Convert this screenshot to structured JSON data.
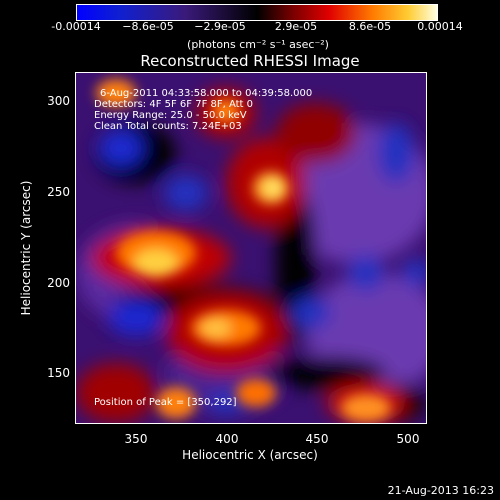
{
  "colorbar": {
    "ticks": [
      "-0.00014",
      "−8.6e-05",
      "−2.9e-05",
      "2.9e-05",
      "8.6e-05",
      "0.00014"
    ],
    "unit": "(photons cm⁻² s⁻¹ asec⁻²)"
  },
  "title": "Reconstructed RHESSI Image",
  "info": {
    "line1": "6-Aug-2011 04:33:58.000 to 04:39:58.000",
    "line2": "Detectors: 4F 5F 6F 7F 8F, Att 0",
    "line3": "Energy Range: 25.0 - 50.0 keV",
    "line4": "Clean     Total counts: 7.24E+03"
  },
  "peak_text": "Position of Peak = [350,292]",
  "xaxis": {
    "title": "Heliocentric X (arcsec)",
    "ticks": [
      "350",
      "400",
      "450",
      "500"
    ]
  },
  "yaxis": {
    "title": "Heliocentric Y (arcsec)",
    "ticks": [
      "300",
      "250",
      "200",
      "150"
    ]
  },
  "timestamp": "21-Aug-2013 16:23",
  "colors": {
    "background": "#000000",
    "frame": "#ffffff"
  }
}
